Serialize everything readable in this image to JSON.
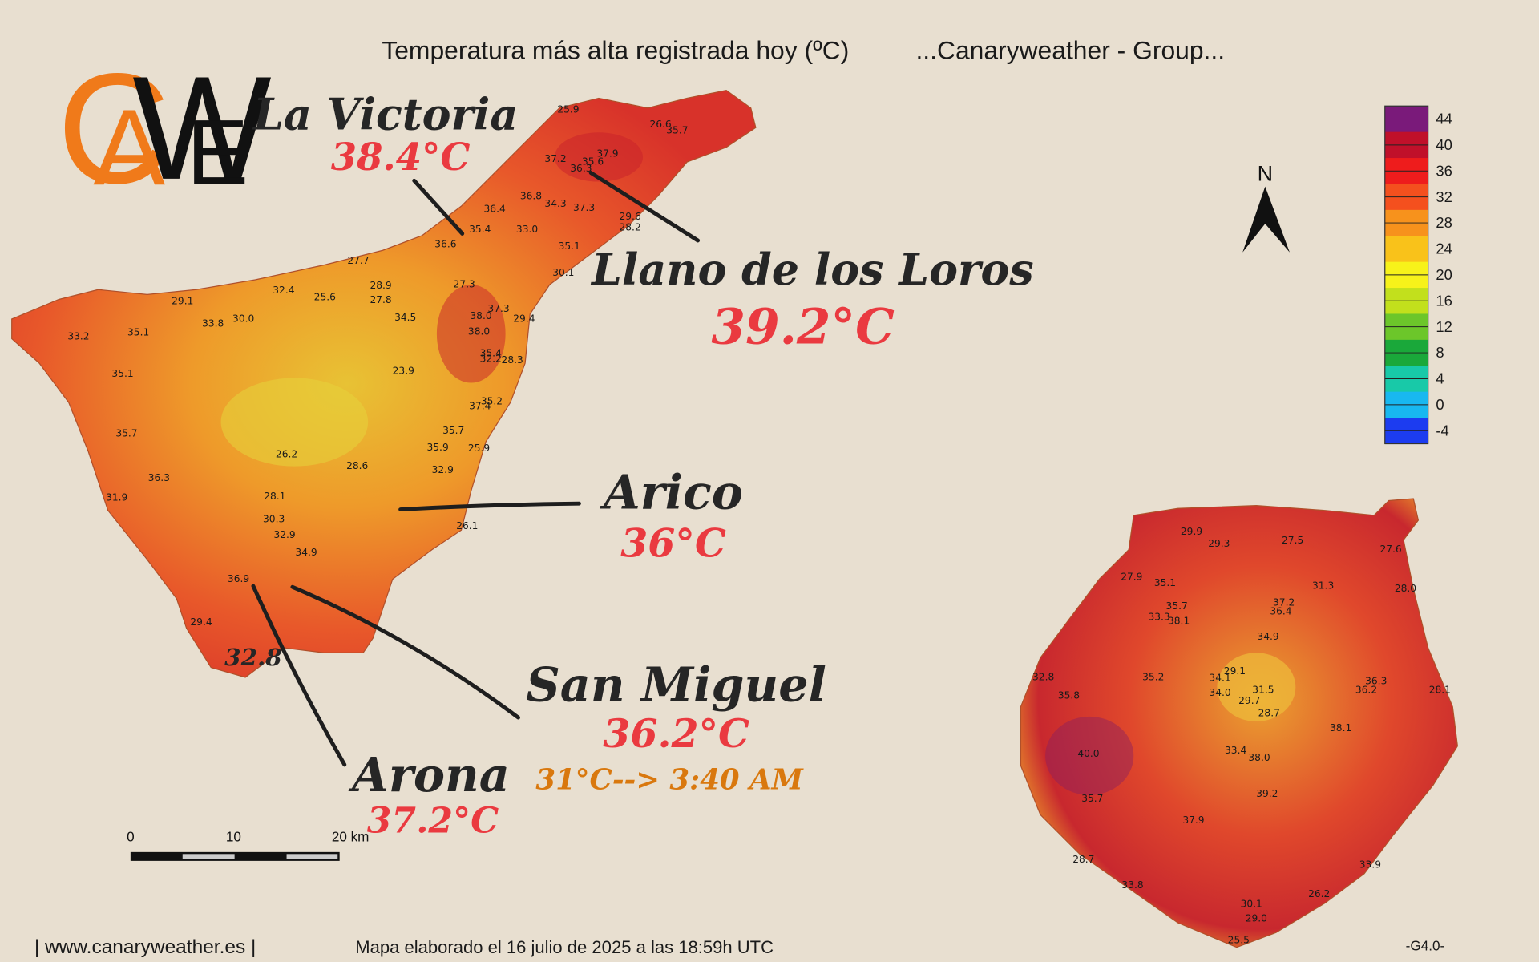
{
  "header": {
    "title": "Temperatura más alta registrada hoy (ºC)",
    "group": "...Canaryweather - Group..."
  },
  "logo": {
    "letters": [
      "C",
      "A",
      "W",
      "E"
    ]
  },
  "callouts": [
    {
      "place": "La Victoria",
      "temp": "38.4°C"
    },
    {
      "place": "Llano de los Loros",
      "temp": "39.2°C"
    },
    {
      "place": "Arico",
      "temp": "36°C"
    },
    {
      "place": "San Miguel",
      "temp": "36.2°C",
      "note": "31°C--> 3:40 AM"
    },
    {
      "place": "Arona",
      "temp": "37.2°C"
    }
  ],
  "arona_station": "32.8",
  "compass": "N",
  "legend": {
    "ticks": [
      44,
      40,
      36,
      32,
      28,
      24,
      20,
      16,
      12,
      8,
      4,
      0,
      -4
    ],
    "colors": [
      "#7a1a7a",
      "#c0102a",
      "#ee1c1c",
      "#f4501e",
      "#f7921c",
      "#f9c21a",
      "#f7f21a",
      "#c2e01c",
      "#6cc62a",
      "#1aa83a",
      "#18c9a8",
      "#18b8f0",
      "#1c3cf0"
    ]
  },
  "scale_bar": {
    "ticks": [
      "0",
      "10",
      "20 km"
    ]
  },
  "stations": {
    "tenerife": [
      "25.9",
      "26.6",
      "35.7",
      "37.2",
      "35.6",
      "37.9",
      "36.3",
      "36.8",
      "34.3",
      "37.3",
      "36.4",
      "29.6",
      "28.2",
      "35.4",
      "33.0",
      "36.6",
      "35.1",
      "30.1",
      "27.7",
      "32.4",
      "25.6",
      "28.9",
      "27.3",
      "27.8",
      "29.1",
      "37.3",
      "38.0",
      "29.4",
      "34.5",
      "33.8",
      "30.0",
      "33.2",
      "35.1",
      "38.0",
      "35.4",
      "32.2",
      "28.3",
      "35.1",
      "23.9",
      "35.2",
      "37.4",
      "35.7",
      "35.7",
      "35.9",
      "25.9",
      "26.2",
      "28.6",
      "32.9",
      "36.3",
      "31.9",
      "28.1",
      "30.3",
      "32.9",
      "26.1",
      "34.9",
      "36.9",
      "29.4"
    ],
    "gran_canaria": [
      "29.9",
      "29.3",
      "27.5",
      "27.6",
      "27.9",
      "35.1",
      "31.3",
      "28.0",
      "35.7",
      "37.2",
      "33.3",
      "38.1",
      "36.4",
      "34.9",
      "29.1",
      "32.8",
      "35.2",
      "34.1",
      "36.3",
      "31.5",
      "36.2",
      "28.1",
      "35.8",
      "34.0",
      "29.7",
      "28.7",
      "38.1",
      "33.4",
      "38.0",
      "40.0",
      "39.2",
      "35.7",
      "37.9",
      "28.7",
      "33.9",
      "33.8",
      "26.2",
      "30.1",
      "29.0",
      "25.5"
    ]
  },
  "footer": {
    "site": "| www.canaryweather.es |",
    "made": "Mapa elaborado el 16 julio de 2025 a las 18:59h UTC",
    "code": "-G4.0-"
  }
}
